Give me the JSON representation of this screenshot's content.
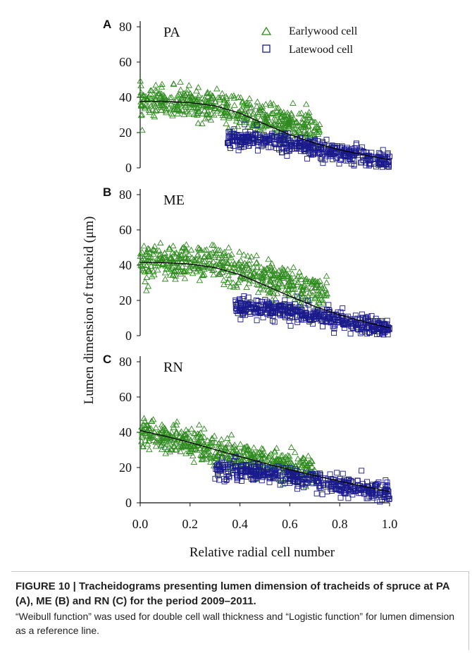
{
  "chart_data": {
    "type": "scatter",
    "ylabel": "Lumen dimension of tracheid (μm)",
    "xlabel": "Relative radial cell number",
    "xlim": [
      0,
      1
    ],
    "ylim": [
      0,
      80
    ],
    "x_ticks": [
      "0.0",
      "0.2",
      "0.4",
      "0.6",
      "0.8",
      "1.0"
    ],
    "y_ticks": [
      "0",
      "20",
      "40",
      "60",
      "80"
    ],
    "legend": {
      "placement": "top-right",
      "entries": [
        "Earlywood cell",
        "Latewood cell"
      ]
    },
    "colors": {
      "earlywood": "#2e8b1e",
      "latewood": "#1a1a8c",
      "fit": "#000000"
    },
    "panels": [
      {
        "letter": "A",
        "site": "PA",
        "fit_line": [
          [
            0.0,
            37.8
          ],
          [
            0.1,
            37.7
          ],
          [
            0.2,
            37.0
          ],
          [
            0.3,
            35.2
          ],
          [
            0.4,
            31.0
          ],
          [
            0.5,
            24.8
          ],
          [
            0.6,
            18.8
          ],
          [
            0.7,
            14.0
          ],
          [
            0.8,
            10.2
          ],
          [
            0.9,
            7.2
          ],
          [
            1.0,
            4.6
          ]
        ],
        "series": [
          {
            "name": "Earlywood cell",
            "marker": "triangle",
            "x_range": [
              0.0,
              0.72
            ],
            "center": [
              37,
              37,
              36.5,
              35,
              31,
              27,
              24,
              22
            ],
            "spread": 10
          },
          {
            "name": "Latewood cell",
            "marker": "square",
            "x_range": [
              0.35,
              1.0
            ],
            "center": [
              17,
              16,
              14,
              12,
              9,
              6,
              3
            ],
            "spread": 6
          }
        ]
      },
      {
        "letter": "B",
        "site": "ME",
        "fit_line": [
          [
            0.0,
            41.6
          ],
          [
            0.1,
            41.4
          ],
          [
            0.2,
            40.6
          ],
          [
            0.3,
            38.6
          ],
          [
            0.4,
            34.6
          ],
          [
            0.5,
            28.6
          ],
          [
            0.6,
            22.4
          ],
          [
            0.7,
            16.6
          ],
          [
            0.8,
            11.8
          ],
          [
            0.9,
            7.8
          ],
          [
            1.0,
            4.4
          ]
        ],
        "series": [
          {
            "name": "Earlywood cell",
            "marker": "triangle",
            "x_range": [
              0.0,
              0.75
            ],
            "center": [
              42,
              42,
              41.5,
              40,
              36,
              31,
              27,
              23
            ],
            "spread": 11
          },
          {
            "name": "Latewood cell",
            "marker": "square",
            "x_range": [
              0.38,
              1.0
            ],
            "center": [
              16,
              15,
              14,
              12,
              9,
              6,
              3
            ],
            "spread": 6
          }
        ]
      },
      {
        "letter": "C",
        "site": "RN",
        "fit_line": [
          [
            0.0,
            41.0
          ],
          [
            0.1,
            37.8
          ],
          [
            0.2,
            34.2
          ],
          [
            0.3,
            30.2
          ],
          [
            0.4,
            26.2
          ],
          [
            0.5,
            22.4
          ],
          [
            0.6,
            18.8
          ],
          [
            0.7,
            15.4
          ],
          [
            0.8,
            12.2
          ],
          [
            0.9,
            9.2
          ],
          [
            1.0,
            6.4
          ]
        ],
        "series": [
          {
            "name": "Earlywood cell",
            "marker": "triangle",
            "x_range": [
              0.0,
              0.7
            ],
            "center": [
              41,
              37,
              34,
              30,
              26,
              23,
              20,
              18
            ],
            "spread": 9
          },
          {
            "name": "Latewood cell",
            "marker": "square",
            "x_range": [
              0.3,
              1.0
            ],
            "center": [
              19,
              18,
              16,
              14,
              11,
              8,
              5
            ],
            "spread": 6
          }
        ]
      }
    ]
  },
  "caption": {
    "title": "FIGURE 10 | Tracheidograms presenting lumen dimension of tracheids of spruce at PA (A), ME (B) and RN (C) for the period 2009–2011.",
    "text": "“Weibull function” was used for double cell wall thickness and “Logistic function” for lumen dimension as a reference line."
  }
}
